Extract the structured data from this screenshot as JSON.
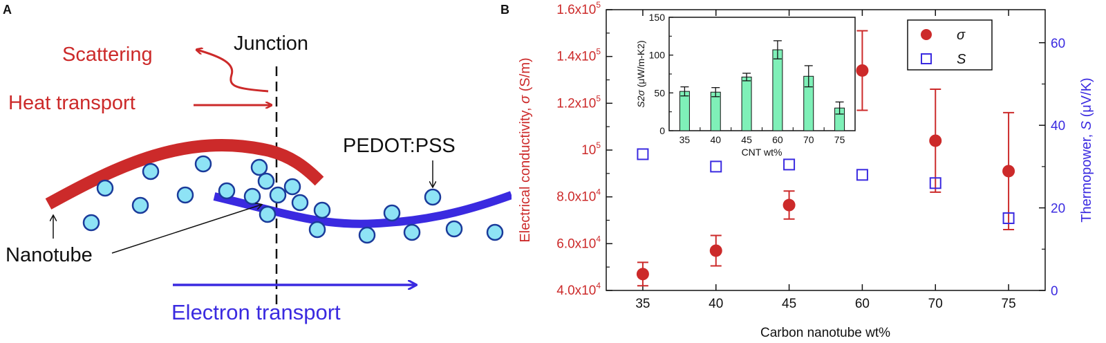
{
  "panel_a": {
    "letter": "A",
    "labels": {
      "scattering": "Scattering",
      "junction": "Junction",
      "heat_transport": "Heat transport",
      "pedot_pss": "PEDOT:PSS",
      "nanotube": "Nanotube",
      "electron_transport": "Electron transport"
    },
    "colors": {
      "red": "#cc2a2a",
      "blue": "#3a2ae0",
      "circle_fill": "#8ee3f5",
      "circle_stroke": "#1a3a9a"
    }
  },
  "panel_b": {
    "letter": "B"
  },
  "chart_data": [
    {
      "type": "scatter",
      "categories": [
        "35",
        "40",
        "45",
        "60",
        "70",
        "75"
      ],
      "xlabel": "Carbon nanotube wt%",
      "ylabel_left_prefix": "Electrical conductivity, ",
      "ylabel_left_symbol": "σ",
      "ylabel_left_unit": " (S/m)",
      "ylabel_right_prefix": "Thermopower, ",
      "ylabel_right_symbol": "S",
      "ylabel_right_unit": " (μV/K)",
      "ylim_left": [
        40000,
        160000
      ],
      "ylim_right": [
        0,
        68
      ],
      "yticks_left": [
        {
          "value": 40000,
          "mant": "4.0x10",
          "exp": "4"
        },
        {
          "value": 60000,
          "mant": "6.0x10",
          "exp": "4"
        },
        {
          "value": 80000,
          "mant": "8.0x10",
          "exp": "4"
        },
        {
          "value": 100000,
          "mant": "10",
          "exp": "5"
        },
        {
          "value": 120000,
          "mant": "1.2x10",
          "exp": "5"
        },
        {
          "value": 140000,
          "mant": "1.4x10",
          "exp": "5"
        },
        {
          "value": 160000,
          "mant": "1.6x10",
          "exp": "5"
        }
      ],
      "yticks_right": [
        0,
        20,
        40,
        60
      ],
      "legend_position": "top-right",
      "series": [
        {
          "name": "σ",
          "axis": "left",
          "marker": "filled-circle",
          "color": "#cc2a2a",
          "values": [
            47000,
            57000,
            76500,
            134000,
            104000,
            91000
          ],
          "err": [
            5000,
            6500,
            6000,
            17000,
            22000,
            25000
          ]
        },
        {
          "name": "S",
          "axis": "right",
          "marker": "open-square",
          "color": "#3a2ae0",
          "values": [
            33,
            30,
            30.5,
            28,
            26,
            17.5
          ]
        }
      ]
    },
    {
      "type": "bar",
      "categories": [
        "35",
        "40",
        "45",
        "60",
        "70",
        "75"
      ],
      "values": [
        52,
        51,
        71,
        107,
        72,
        30
      ],
      "err": [
        6,
        6,
        5,
        12,
        14,
        8
      ],
      "xlabel": "CNT wt%",
      "ylabel_symbol": "S2σ",
      "ylabel_unit": " (μW/m-K2)",
      "ylim": [
        0,
        150
      ],
      "yticks": [
        0,
        50,
        100,
        150
      ],
      "color": "#7ff0b8"
    }
  ]
}
